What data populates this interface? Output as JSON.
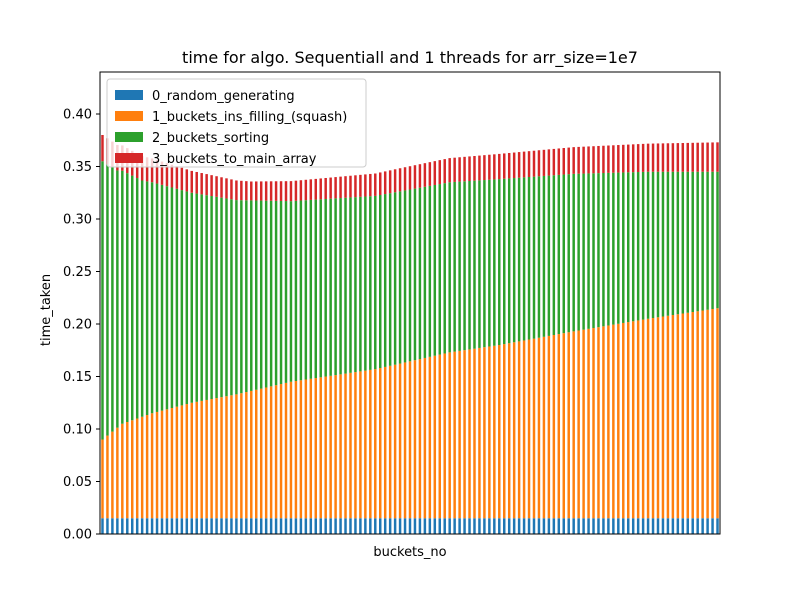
{
  "chart_data": {
    "type": "bar",
    "stacked": true,
    "title": "time for algo. Sequentiall and 1 threads  for arr_size=1e7",
    "xlabel": "buckets_no",
    "ylabel": "time_taken",
    "ylim": [
      0,
      0.44
    ],
    "y_ticks": [
      "0.00",
      "0.05",
      "0.10",
      "0.15",
      "0.20",
      "0.25",
      "0.30",
      "0.35",
      "0.40"
    ],
    "y_tick_values": [
      0,
      0.05,
      0.1,
      0.15,
      0.2,
      0.25,
      0.3,
      0.35,
      0.4
    ],
    "grid": false,
    "legend_position": "upper-left",
    "bar_count": 125,
    "series": [
      {
        "name": "0_random_generating",
        "color": "#1f77b4",
        "anchors": [
          [
            0,
            0.015
          ],
          [
            124,
            0.015
          ]
        ]
      },
      {
        "name": "1_buckets_ins_filling_(squash)",
        "color": "#ff7f0e",
        "anchors": [
          [
            0,
            0.075
          ],
          [
            4,
            0.09
          ],
          [
            10,
            0.1
          ],
          [
            18,
            0.11
          ],
          [
            27,
            0.118
          ],
          [
            38,
            0.13
          ],
          [
            55,
            0.142
          ],
          [
            70,
            0.158
          ],
          [
            80,
            0.165
          ],
          [
            95,
            0.178
          ],
          [
            110,
            0.19
          ],
          [
            124,
            0.2
          ]
        ]
      },
      {
        "name": "2_buckets_sorting",
        "color": "#2ca02c",
        "anchors": [
          [
            0,
            0.265
          ],
          [
            3,
            0.245
          ],
          [
            8,
            0.225
          ],
          [
            18,
            0.2
          ],
          [
            27,
            0.185
          ],
          [
            38,
            0.172
          ],
          [
            55,
            0.165
          ],
          [
            70,
            0.162
          ],
          [
            80,
            0.158
          ],
          [
            95,
            0.15
          ],
          [
            110,
            0.14
          ],
          [
            124,
            0.13
          ]
        ]
      },
      {
        "name": "3_buckets_to_main_array",
        "color": "#d62728",
        "anchors": [
          [
            0,
            0.025
          ],
          [
            30,
            0.018
          ],
          [
            60,
            0.022
          ],
          [
            90,
            0.025
          ],
          [
            124,
            0.028
          ]
        ]
      }
    ]
  }
}
